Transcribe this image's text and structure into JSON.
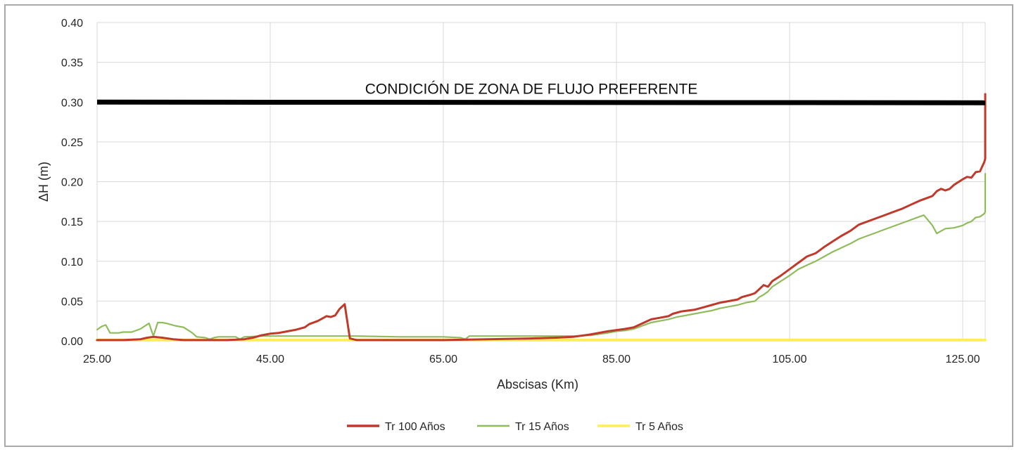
{
  "chart_data": {
    "type": "line",
    "title": "",
    "xlabel": "Abscisas (Km)",
    "ylabel": "ΔH (m)",
    "xlim": [
      25,
      130
    ],
    "ylim": [
      0,
      0.4
    ],
    "x_ticks": [
      "25.00",
      "45.00",
      "65.00",
      "85.00",
      "105.00",
      "125.00"
    ],
    "y_ticks": [
      "0.00",
      "0.05",
      "0.10",
      "0.15",
      "0.20",
      "0.25",
      "0.30",
      "0.35",
      "0.40"
    ],
    "grid": true,
    "legend_position": "bottom",
    "threshold": {
      "value": 0.3,
      "label": "CONDICIÓN DE ZONA DE FLUJO PREFERENTE",
      "color": "#000000"
    },
    "series": [
      {
        "name": "Tr 100 Años",
        "color": "#c0392b",
        "points": [
          [
            25,
            0.001
          ],
          [
            28,
            0.001
          ],
          [
            30,
            0.002
          ],
          [
            30.8,
            0.004
          ],
          [
            31.5,
            0.005
          ],
          [
            32.5,
            0.004
          ],
          [
            33.8,
            0.002
          ],
          [
            35,
            0.001
          ],
          [
            40,
            0.001
          ],
          [
            42,
            0.002
          ],
          [
            43,
            0.004
          ],
          [
            44,
            0.007
          ],
          [
            45,
            0.009
          ],
          [
            46,
            0.01
          ],
          [
            47,
            0.012
          ],
          [
            48,
            0.014
          ],
          [
            49,
            0.017
          ],
          [
            49.5,
            0.021
          ],
          [
            50.5,
            0.025
          ],
          [
            51,
            0.028
          ],
          [
            51.5,
            0.031
          ],
          [
            52,
            0.03
          ],
          [
            52.5,
            0.032
          ],
          [
            53,
            0.04
          ],
          [
            53.6,
            0.046
          ],
          [
            54.2,
            0.003
          ],
          [
            55,
            0.001
          ],
          [
            65,
            0.001
          ],
          [
            70,
            0.002
          ],
          [
            75,
            0.003
          ],
          [
            78,
            0.004
          ],
          [
            80,
            0.005
          ],
          [
            82,
            0.008
          ],
          [
            84,
            0.012
          ],
          [
            86,
            0.015
          ],
          [
            87,
            0.017
          ],
          [
            88,
            0.022
          ],
          [
            89,
            0.027
          ],
          [
            90,
            0.029
          ],
          [
            91,
            0.031
          ],
          [
            91.5,
            0.034
          ],
          [
            92.5,
            0.037
          ],
          [
            94,
            0.039
          ],
          [
            95,
            0.042
          ],
          [
            96,
            0.045
          ],
          [
            97,
            0.048
          ],
          [
            98,
            0.05
          ],
          [
            99,
            0.052
          ],
          [
            99.5,
            0.055
          ],
          [
            100.5,
            0.058
          ],
          [
            101,
            0.06
          ],
          [
            101.5,
            0.065
          ],
          [
            102,
            0.07
          ],
          [
            102.5,
            0.068
          ],
          [
            103,
            0.075
          ],
          [
            104,
            0.082
          ],
          [
            105,
            0.09
          ],
          [
            106,
            0.098
          ],
          [
            106.5,
            0.102
          ],
          [
            107,
            0.106
          ],
          [
            108,
            0.11
          ],
          [
            109,
            0.118
          ],
          [
            110,
            0.125
          ],
          [
            111,
            0.132
          ],
          [
            112,
            0.138
          ],
          [
            113,
            0.146
          ],
          [
            114,
            0.15
          ],
          [
            115,
            0.154
          ],
          [
            116,
            0.158
          ],
          [
            117,
            0.162
          ],
          [
            118,
            0.166
          ],
          [
            119,
            0.171
          ],
          [
            120,
            0.176
          ],
          [
            121,
            0.18
          ],
          [
            121.5,
            0.182
          ],
          [
            122,
            0.188
          ],
          [
            122.5,
            0.191
          ],
          [
            123,
            0.189
          ],
          [
            123.5,
            0.191
          ],
          [
            124,
            0.196
          ],
          [
            125,
            0.203
          ],
          [
            125.5,
            0.206
          ],
          [
            126,
            0.205
          ],
          [
            126.5,
            0.212
          ],
          [
            127,
            0.213
          ],
          [
            127.5,
            0.225
          ],
          [
            128,
            0.229
          ],
          [
            128.5,
            0.233
          ],
          [
            129,
            0.238
          ],
          [
            129.5,
            0.243
          ],
          [
            130,
            0.24
          ],
          [
            130.5,
            0.255
          ],
          [
            131,
            0.248
          ],
          [
            131.5,
            0.258
          ],
          [
            132,
            0.263
          ],
          [
            133,
            0.265
          ],
          [
            133.5,
            0.295
          ],
          [
            134,
            0.31
          ],
          [
            134.5,
            0.305
          ],
          [
            135,
            0.29
          ]
        ]
      },
      {
        "name": "Tr 15 Años",
        "color": "#8fbc5a",
        "points": [
          [
            25,
            0.014
          ],
          [
            25.5,
            0.018
          ],
          [
            26,
            0.02
          ],
          [
            26.5,
            0.01
          ],
          [
            27.5,
            0.01
          ],
          [
            28,
            0.011
          ],
          [
            29,
            0.011
          ],
          [
            30,
            0.015
          ],
          [
            31,
            0.022
          ],
          [
            31.5,
            0.006
          ],
          [
            32,
            0.023
          ],
          [
            32.5,
            0.023
          ],
          [
            33,
            0.022
          ],
          [
            34,
            0.019
          ],
          [
            35,
            0.017
          ],
          [
            36,
            0.01
          ],
          [
            36.5,
            0.005
          ],
          [
            37.5,
            0.004
          ],
          [
            38,
            0.002
          ],
          [
            38.5,
            0.004
          ],
          [
            39,
            0.005
          ],
          [
            41,
            0.005
          ],
          [
            41.5,
            0.002
          ],
          [
            42,
            0.005
          ],
          [
            44,
            0.006
          ],
          [
            50,
            0.006
          ],
          [
            55,
            0.006
          ],
          [
            60,
            0.005
          ],
          [
            65,
            0.005
          ],
          [
            67,
            0.004
          ],
          [
            67.5,
            0.002
          ],
          [
            68,
            0.006
          ],
          [
            70,
            0.006
          ],
          [
            80,
            0.006
          ],
          [
            82,
            0.007
          ],
          [
            84,
            0.01
          ],
          [
            85,
            0.012
          ],
          [
            86,
            0.013
          ],
          [
            87,
            0.015
          ],
          [
            88,
            0.019
          ],
          [
            89,
            0.023
          ],
          [
            90,
            0.025
          ],
          [
            91,
            0.027
          ],
          [
            92,
            0.03
          ],
          [
            93,
            0.032
          ],
          [
            94,
            0.034
          ],
          [
            95,
            0.036
          ],
          [
            96,
            0.038
          ],
          [
            97,
            0.041
          ],
          [
            98,
            0.043
          ],
          [
            99,
            0.045
          ],
          [
            100,
            0.048
          ],
          [
            101,
            0.05
          ],
          [
            101.5,
            0.055
          ],
          [
            102,
            0.058
          ],
          [
            102.5,
            0.062
          ],
          [
            103,
            0.068
          ],
          [
            104,
            0.075
          ],
          [
            105,
            0.082
          ],
          [
            106,
            0.09
          ],
          [
            107,
            0.095
          ],
          [
            108,
            0.1
          ],
          [
            109,
            0.106
          ],
          [
            110,
            0.112
          ],
          [
            111,
            0.117
          ],
          [
            112,
            0.122
          ],
          [
            113,
            0.128
          ],
          [
            114,
            0.132
          ],
          [
            115,
            0.136
          ],
          [
            116,
            0.14
          ],
          [
            117,
            0.144
          ],
          [
            118,
            0.148
          ],
          [
            119,
            0.152
          ],
          [
            120,
            0.156
          ],
          [
            120.5,
            0.158
          ],
          [
            121.5,
            0.145
          ],
          [
            122,
            0.135
          ],
          [
            122.5,
            0.138
          ],
          [
            123,
            0.141
          ],
          [
            124,
            0.142
          ],
          [
            125,
            0.145
          ],
          [
            125.5,
            0.148
          ],
          [
            126,
            0.15
          ],
          [
            126.5,
            0.155
          ],
          [
            127,
            0.156
          ],
          [
            127.5,
            0.16
          ],
          [
            128,
            0.162
          ],
          [
            128.5,
            0.17
          ],
          [
            129,
            0.174
          ],
          [
            129.5,
            0.178
          ],
          [
            130,
            0.183
          ],
          [
            130.5,
            0.186
          ],
          [
            131,
            0.191
          ],
          [
            131.5,
            0.188
          ],
          [
            132,
            0.193
          ],
          [
            132.5,
            0.195
          ],
          [
            133,
            0.197
          ],
          [
            133.5,
            0.2
          ],
          [
            134,
            0.206
          ],
          [
            134.5,
            0.21
          ],
          [
            135,
            0.208
          ]
        ]
      },
      {
        "name": "Tr 5 Años",
        "color": "#ffee58",
        "points": [
          [
            25,
            0.001
          ],
          [
            135,
            0.001
          ]
        ]
      }
    ]
  }
}
